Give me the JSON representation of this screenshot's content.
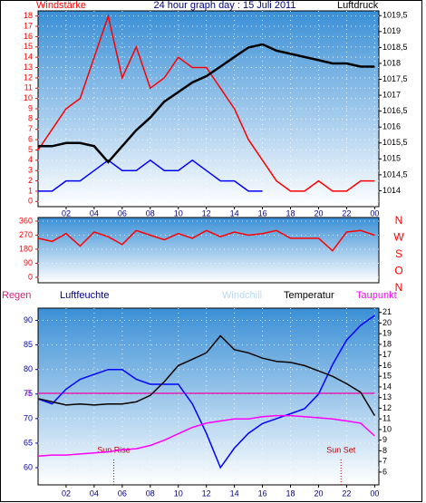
{
  "chart_data": [
    {
      "type": "line",
      "title": "24 hour graph day : 15 Juli 2011",
      "y_label": "Windstärke",
      "y2_label": "Luftdruck",
      "x": [
        0,
        1,
        2,
        3,
        4,
        5,
        6,
        7,
        8,
        9,
        10,
        11,
        12,
        13,
        14,
        15,
        16,
        17,
        18,
        19,
        20,
        21,
        22,
        23,
        24
      ],
      "xlim": [
        0,
        24.3
      ],
      "xticks": [
        {
          "value": 2,
          "label": "02"
        },
        {
          "value": 4,
          "label": "04"
        },
        {
          "value": 6,
          "label": "06"
        },
        {
          "value": 8,
          "label": "08"
        },
        10,
        12,
        14,
        16,
        18,
        20,
        22,
        {
          "value": 24,
          "label": "00"
        }
      ],
      "ylim": [
        -0.5,
        18.5
      ],
      "yticks": [
        0,
        1,
        2,
        3,
        4,
        5,
        6,
        7,
        8,
        9,
        10,
        11,
        12,
        13,
        14,
        15,
        16,
        17,
        18
      ],
      "y2lim": [
        1013.5,
        1019.65
      ],
      "y2ticks": [
        1014,
        {
          "value": 1014.5,
          "label": "1014,5"
        },
        1015,
        {
          "value": 1015.5,
          "label": "1015,5"
        },
        1016,
        {
          "value": 1016.5,
          "label": "1016,5"
        },
        1017,
        {
          "value": 1017.5,
          "label": "1017,5"
        },
        1018,
        {
          "value": 1018.5,
          "label": "1018,5"
        },
        1019,
        {
          "value": 1019.5,
          "label": "1019,5"
        }
      ],
      "grid": true,
      "series": [
        {
          "color": "#ff0000",
          "values": [
            5,
            7,
            9,
            10,
            14,
            18,
            12,
            15,
            11,
            12,
            14,
            13,
            13,
            11,
            9,
            6,
            4,
            2,
            1,
            1,
            2,
            1,
            1,
            2,
            2
          ]
        },
        {
          "color": "#0000ff",
          "values": [
            1,
            1,
            2,
            2,
            3,
            4,
            3,
            3,
            4,
            3,
            3,
            4,
            3,
            2,
            2,
            1,
            1,
            null,
            null,
            null,
            null,
            null,
            null,
            null,
            null
          ]
        },
        {
          "color": "#000000",
          "axis": "y2",
          "values": [
            1015.4,
            1015.4,
            1015.5,
            1015.5,
            1015.4,
            1014.9,
            1015.4,
            1015.9,
            1016.3,
            1016.8,
            1017.1,
            1017.4,
            1017.6,
            1017.9,
            1018.2,
            1018.5,
            1018.6,
            1018.4,
            1018.3,
            1018.2,
            1018.1,
            1018.0,
            1018.0,
            1017.9,
            1017.9
          ]
        }
      ]
    },
    {
      "type": "line",
      "x": [
        0,
        1,
        2,
        3,
        4,
        5,
        6,
        7,
        8,
        9,
        10,
        11,
        12,
        13,
        14,
        15,
        16,
        17,
        18,
        19,
        20,
        21,
        22,
        23,
        24
      ],
      "xlim": [
        0,
        24.3
      ],
      "ylim": [
        -35,
        383
      ],
      "yticks": [
        0,
        90,
        180,
        270,
        360
      ],
      "y2ticks": [
        {
          "value": 360,
          "label": "N"
        },
        {
          "value": 270,
          "label": "W"
        },
        {
          "value": 180,
          "label": "S"
        },
        {
          "value": 90,
          "label": "O"
        },
        {
          "value": 0,
          "label": "N"
        }
      ],
      "grid": true,
      "series": [
        {
          "color": "#ff0000",
          "values": [
            250,
            230,
            280,
            200,
            290,
            260,
            210,
            300,
            270,
            240,
            280,
            250,
            300,
            260,
            290,
            270,
            280,
            300,
            250,
            250,
            250,
            170,
            290,
            300,
            270
          ]
        }
      ]
    },
    {
      "type": "line",
      "x": [
        0,
        1,
        2,
        3,
        4,
        5,
        6,
        7,
        8,
        9,
        10,
        11,
        12,
        13,
        14,
        15,
        16,
        17,
        18,
        19,
        20,
        21,
        22,
        23,
        24
      ],
      "xlim": [
        0,
        24.3
      ],
      "xticks": [
        {
          "value": 2,
          "label": "02"
        },
        {
          "value": 4,
          "label": "04"
        },
        {
          "value": 6,
          "label": "06"
        },
        {
          "value": 8,
          "label": "08"
        },
        10,
        12,
        14,
        16,
        18,
        20,
        22,
        {
          "value": 24,
          "label": "00"
        }
      ],
      "ylim": [
        56.5,
        92.5
      ],
      "yticks": [
        60,
        65,
        70,
        75,
        80,
        85,
        90
      ],
      "y2lim": [
        4.8,
        21.4
      ],
      "y2ticks": [
        6,
        7,
        8,
        9,
        10,
        11,
        12,
        13,
        14,
        15,
        16,
        17,
        18,
        19,
        20,
        21
      ],
      "y3lim": [
        -1,
        0.93
      ],
      "y3ticks": [
        0
      ],
      "grid": true,
      "series": [
        {
          "name": "Regen",
          "color": "#e020b0",
          "axis": "y3",
          "values": [
            0,
            0,
            0,
            0,
            0,
            0,
            0,
            0,
            0,
            0,
            0,
            0,
            0,
            0,
            0,
            0,
            0,
            0,
            0,
            0,
            0,
            0,
            0,
            0,
            0
          ]
        },
        {
          "name": "Luftfeuchte",
          "color": "#0000ff",
          "values": [
            74,
            73,
            76,
            78,
            79,
            80,
            80,
            78,
            77,
            77,
            77,
            73,
            67,
            60,
            64,
            67,
            69,
            70,
            71,
            72,
            75,
            81,
            86,
            89,
            91
          ]
        },
        {
          "name": "Windchill",
          "color": "#b8d8f0",
          "axis": "y2",
          "values": [
            12.9,
            12.6,
            12.3,
            12.4,
            12.3,
            12.4,
            12.4,
            12.6,
            13.2,
            14.5,
            16.0,
            16.6,
            17.2,
            18.8,
            17.5,
            17.2,
            16.7,
            16.4,
            16.3,
            16.0,
            15.5,
            15.0,
            14.3,
            13.5,
            11.3
          ]
        },
        {
          "name": "Temperatur",
          "color": "#000000",
          "axis": "y2",
          "values": [
            12.9,
            12.6,
            12.3,
            12.4,
            12.3,
            12.4,
            12.4,
            12.6,
            13.2,
            14.5,
            16.0,
            16.6,
            17.2,
            18.8,
            17.5,
            17.2,
            16.7,
            16.4,
            16.3,
            16.0,
            15.5,
            15.0,
            14.3,
            13.5,
            11.3
          ]
        },
        {
          "name": "Taupunkt",
          "color": "#ff00ff",
          "axis": "y2",
          "values": [
            7.5,
            7.6,
            7.6,
            7.7,
            7.8,
            7.9,
            8.1,
            8.2,
            8.5,
            9.0,
            9.6,
            10.2,
            10.6,
            10.8,
            11.0,
            11.0,
            11.2,
            11.3,
            11.3,
            11.2,
            11.1,
            11.0,
            10.8,
            10.6,
            9.4
          ]
        }
      ],
      "annotations": [
        {
          "text": "Sun Rise",
          "x": 5.4
        },
        {
          "text": "Sun Set",
          "x": 21.6
        }
      ]
    }
  ]
}
